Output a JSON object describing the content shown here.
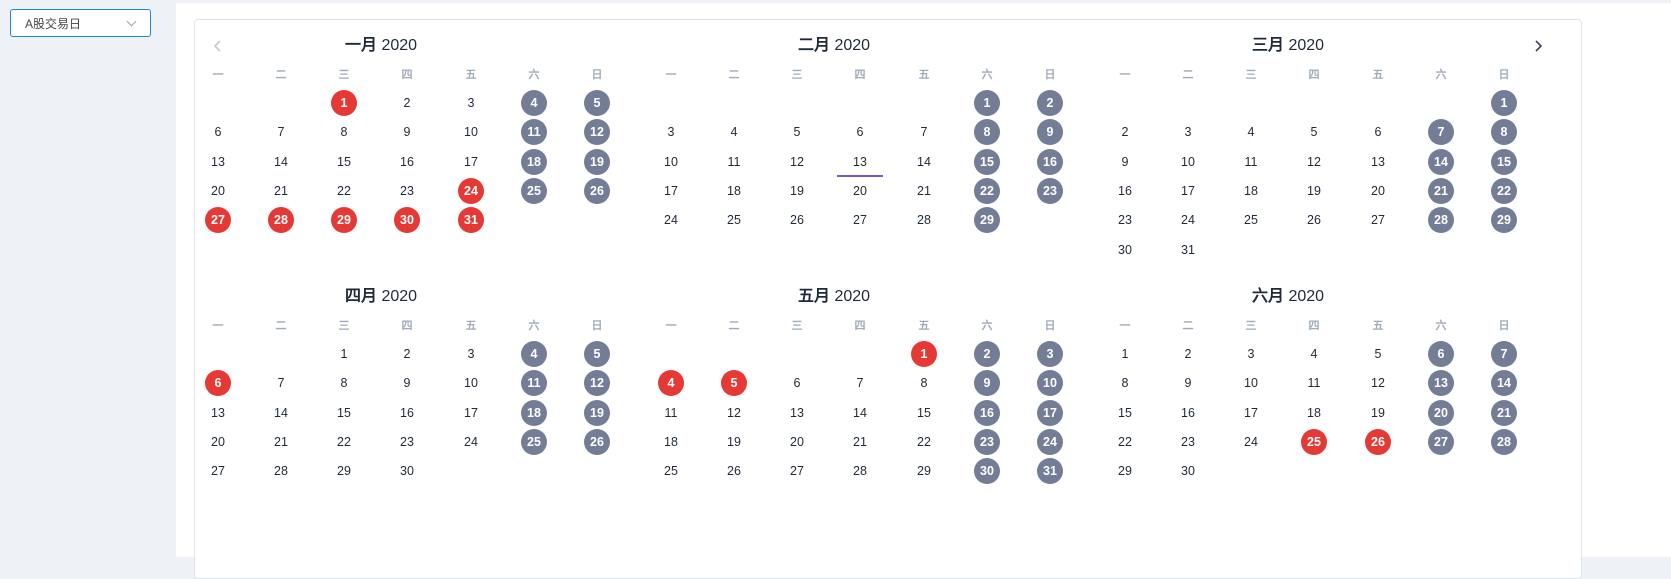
{
  "filter": {
    "selected": "A股交易日",
    "icon": "chevron-down-icon"
  },
  "nav": {
    "prev_icon": "chevron-left-icon",
    "next_icon": "chevron-right-icon"
  },
  "weekdays": [
    "一",
    "二",
    "三",
    "四",
    "五",
    "六",
    "日"
  ],
  "colors": {
    "weekend": "#737e96",
    "holiday": "#e53935",
    "today_underline": "#7b4fe0",
    "select_border": "#1e88e5"
  },
  "months": [
    {
      "name": "一月",
      "year": "2020",
      "first_weekday": 3,
      "days": 31,
      "holidays": [
        1,
        24,
        27,
        28,
        29,
        30,
        31
      ],
      "today": null
    },
    {
      "name": "二月",
      "year": "2020",
      "first_weekday": 6,
      "days": 29,
      "holidays": [],
      "today": 13
    },
    {
      "name": "三月",
      "year": "2020",
      "first_weekday": 7,
      "days": 31,
      "holidays": [],
      "today": null
    },
    {
      "name": "四月",
      "year": "2020",
      "first_weekday": 3,
      "days": 30,
      "holidays": [
        6
      ],
      "today": null
    },
    {
      "name": "五月",
      "year": "2020",
      "first_weekday": 5,
      "days": 31,
      "holidays": [
        1,
        4,
        5
      ],
      "today": null
    },
    {
      "name": "六月",
      "year": "2020",
      "first_weekday": 1,
      "days": 30,
      "holidays": [
        25,
        26
      ],
      "today": null
    }
  ]
}
